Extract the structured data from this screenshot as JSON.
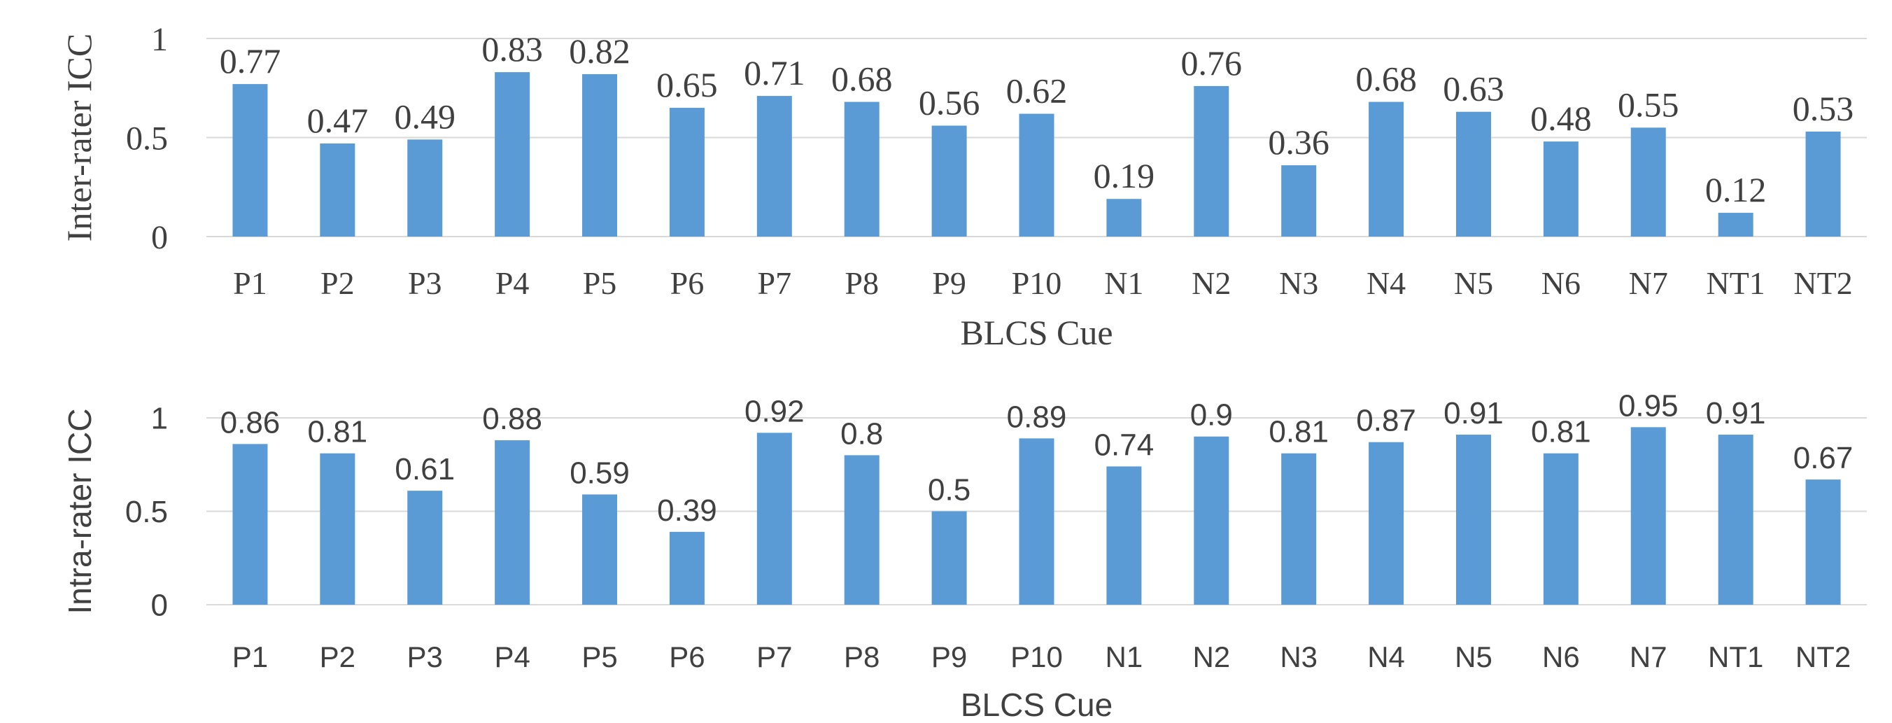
{
  "chart_data": [
    {
      "type": "bar",
      "categories": [
        "P1",
        "P2",
        "P3",
        "P4",
        "P5",
        "P6",
        "P7",
        "P8",
        "P9",
        "P10",
        "N1",
        "N2",
        "N3",
        "N4",
        "N5",
        "N6",
        "N7",
        "NT1",
        "NT2"
      ],
      "values": [
        0.77,
        0.47,
        0.49,
        0.83,
        0.82,
        0.65,
        0.71,
        0.68,
        0.56,
        0.62,
        0.19,
        0.76,
        0.36,
        0.68,
        0.63,
        0.48,
        0.55,
        0.12,
        0.53
      ],
      "data_labels": [
        "0.77",
        "0.47",
        "0.49",
        "0.83",
        "0.82",
        "0.65",
        "0.71",
        "0.68",
        "0.56",
        "0.62",
        "0.19",
        "0.76",
        "0.36",
        "0.68",
        "0.63",
        "0.48",
        "0.55",
        "0.12",
        "0.53"
      ],
      "ylabel": "Inter-rater ICC",
      "xlabel": "BLCS Cue",
      "ylim": [
        0,
        1
      ],
      "yticks": [
        "0",
        "0.5",
        "1"
      ],
      "grid": true,
      "color": "#5b9bd5"
    },
    {
      "type": "bar",
      "categories": [
        "P1",
        "P2",
        "P3",
        "P4",
        "P5",
        "P6",
        "P7",
        "P8",
        "P9",
        "P10",
        "N1",
        "N2",
        "N3",
        "N4",
        "N5",
        "N6",
        "N7",
        "NT1",
        "NT2"
      ],
      "values": [
        0.86,
        0.81,
        0.61,
        0.88,
        0.59,
        0.39,
        0.92,
        0.8,
        0.5,
        0.89,
        0.74,
        0.9,
        0.81,
        0.87,
        0.91,
        0.81,
        0.95,
        0.91,
        0.67
      ],
      "data_labels": [
        "0.86",
        "0.81",
        "0.61",
        "0.88",
        "0.59",
        "0.39",
        "0.92",
        "0.8",
        "0.5",
        "0.89",
        "0.74",
        "0.9",
        "0.81",
        "0.87",
        "0.91",
        "0.81",
        "0.95",
        "0.91",
        "0.67"
      ],
      "ylabel": "Intra-rater ICC",
      "xlabel": "BLCS Cue",
      "ylim": [
        0,
        1
      ],
      "yticks": [
        "0",
        "0.5",
        "1"
      ],
      "grid": true,
      "color": "#5b9bd5"
    }
  ]
}
